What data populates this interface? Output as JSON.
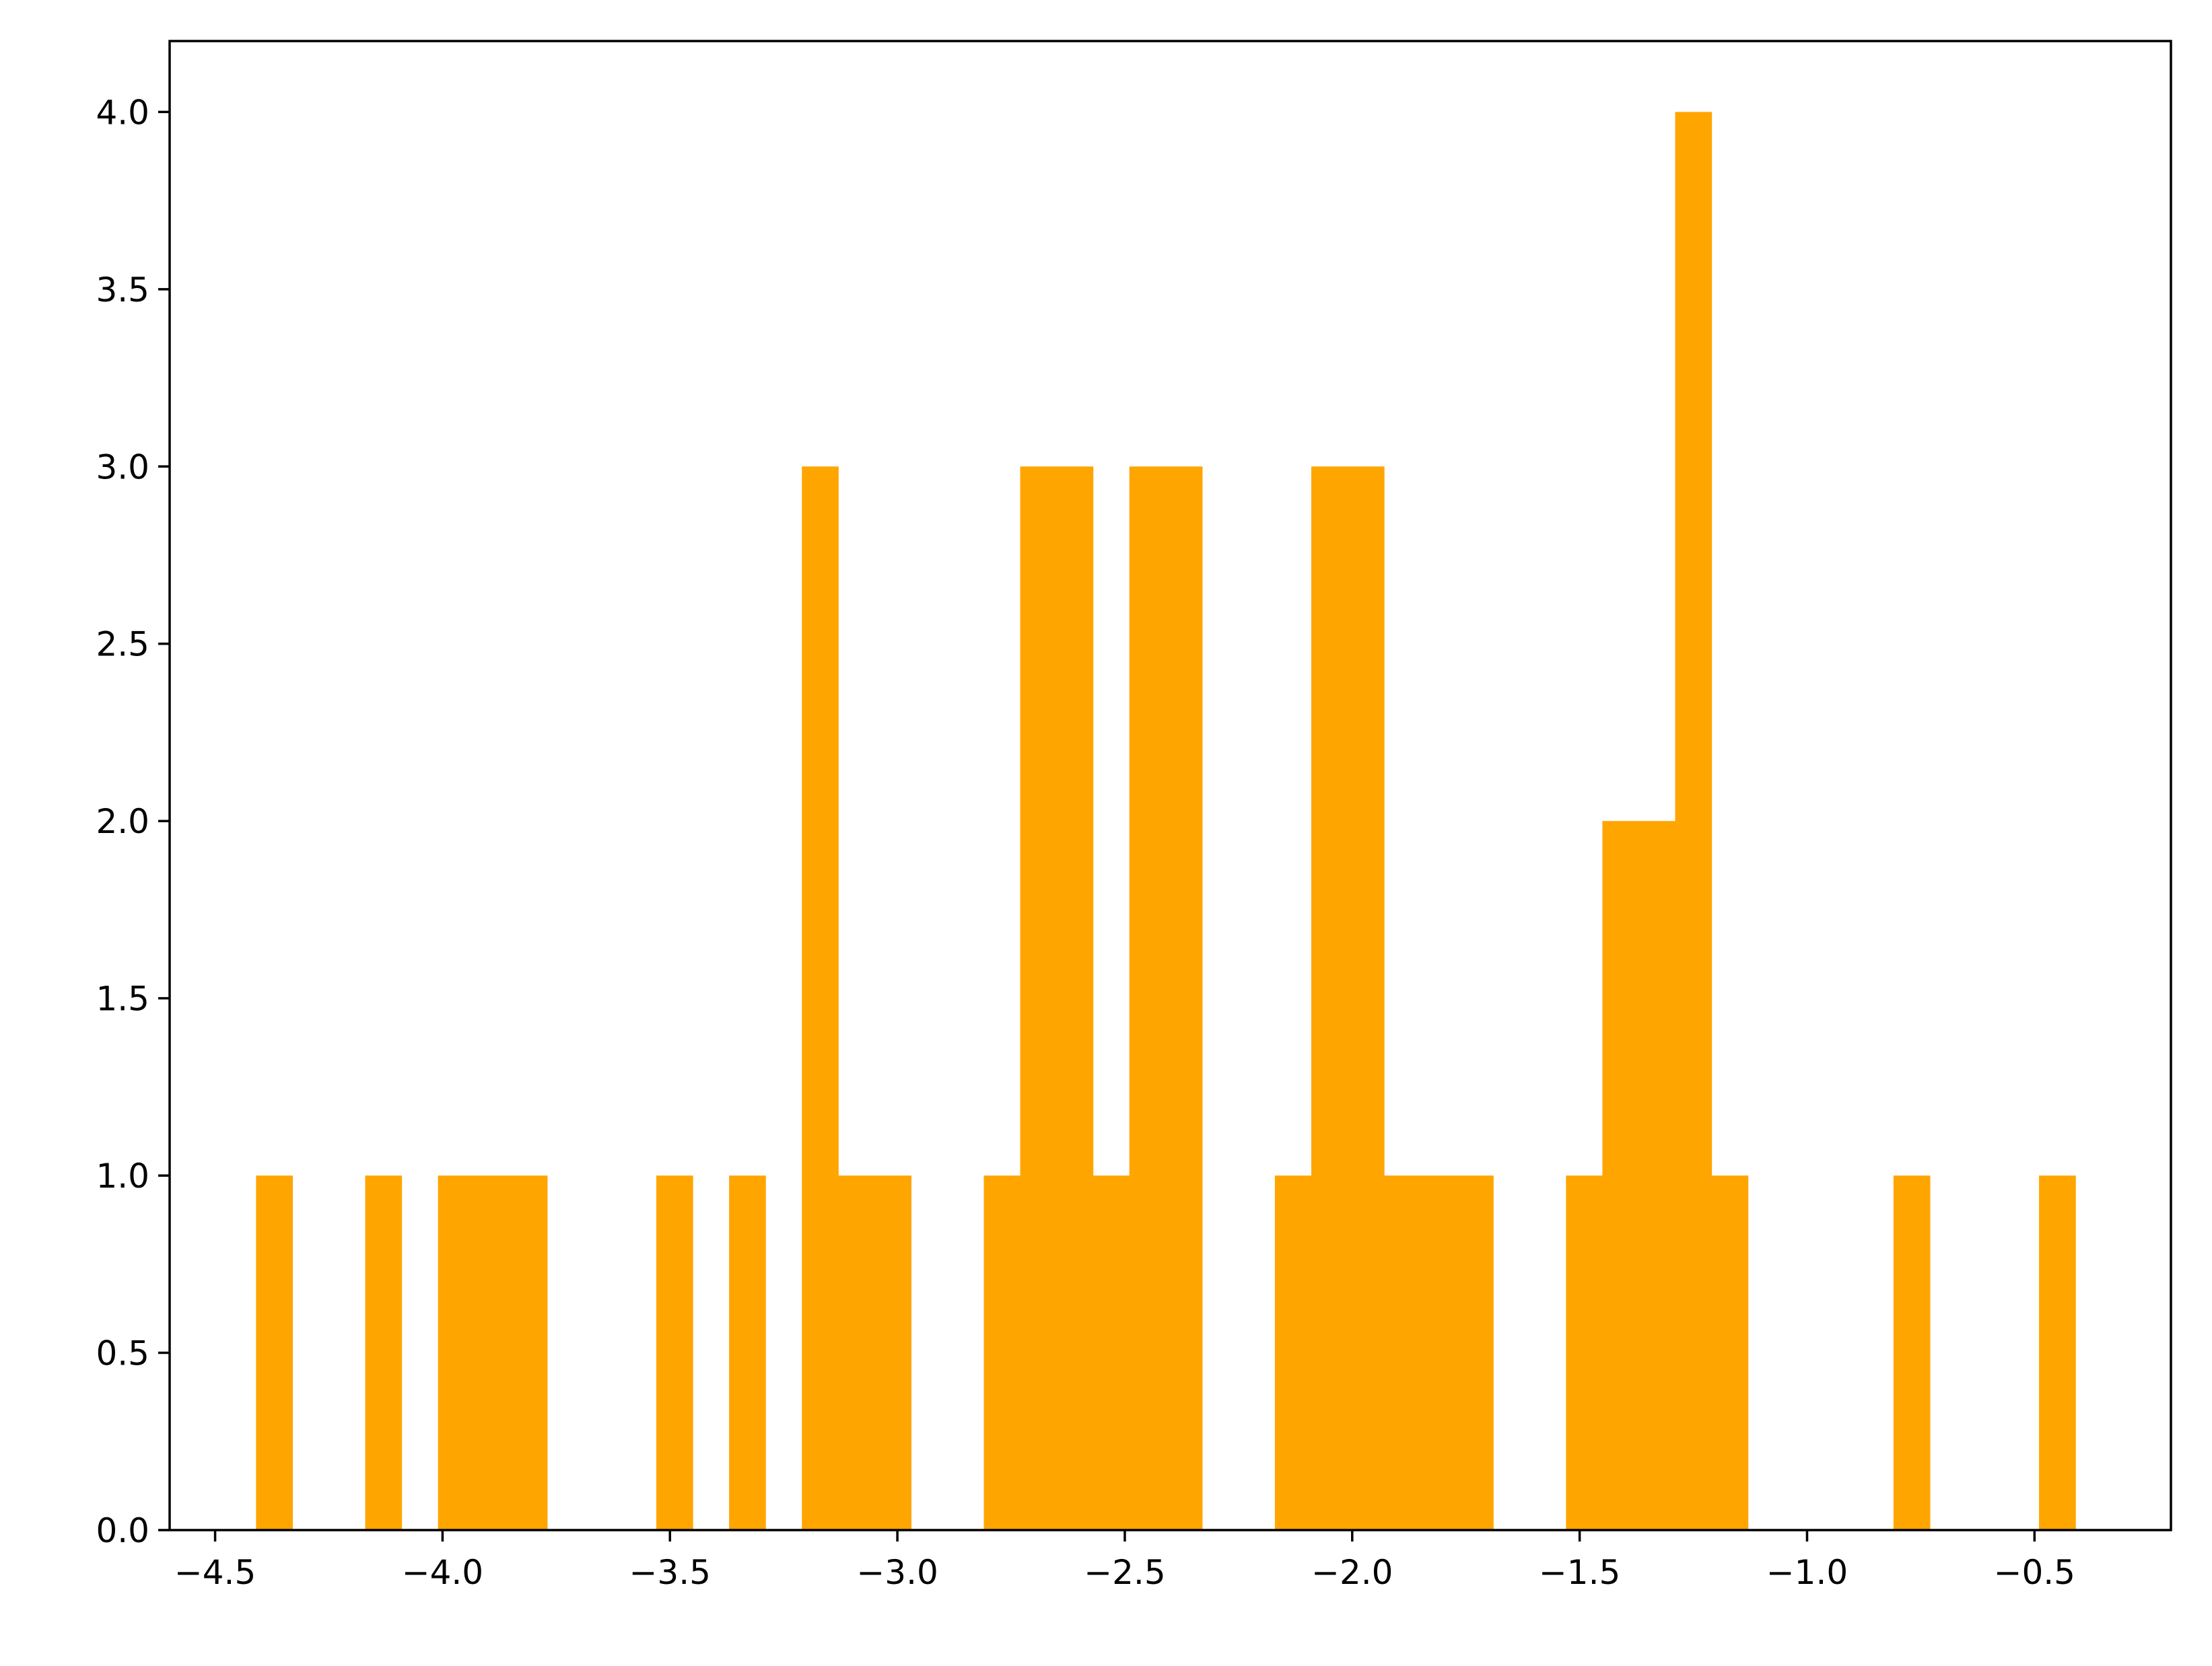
{
  "chart_data": {
    "type": "bar",
    "title": "",
    "xlabel": "",
    "ylabel": "",
    "bar_color": "#FFA500",
    "xlim": [
      -4.6,
      -0.2
    ],
    "ylim": [
      0,
      4.2
    ],
    "bin_width": 0.08,
    "grid": false,
    "bars": [
      {
        "x0": -4.41,
        "x1": -4.33,
        "value": 1
      },
      {
        "x0": -4.17,
        "x1": -4.09,
        "value": 1
      },
      {
        "x0": -4.01,
        "x1": -3.93,
        "value": 1
      },
      {
        "x0": -3.93,
        "x1": -3.85,
        "value": 1
      },
      {
        "x0": -3.85,
        "x1": -3.77,
        "value": 1
      },
      {
        "x0": -3.53,
        "x1": -3.45,
        "value": 1
      },
      {
        "x0": -3.37,
        "x1": -3.29,
        "value": 1
      },
      {
        "x0": -3.21,
        "x1": -3.13,
        "value": 3
      },
      {
        "x0": -3.13,
        "x1": -3.05,
        "value": 1
      },
      {
        "x0": -3.05,
        "x1": -2.97,
        "value": 1
      },
      {
        "x0": -2.81,
        "x1": -2.73,
        "value": 1
      },
      {
        "x0": -2.73,
        "x1": -2.65,
        "value": 3
      },
      {
        "x0": -2.65,
        "x1": -2.57,
        "value": 3
      },
      {
        "x0": -2.57,
        "x1": -2.49,
        "value": 1
      },
      {
        "x0": -2.49,
        "x1": -2.41,
        "value": 3
      },
      {
        "x0": -2.41,
        "x1": -2.33,
        "value": 3
      },
      {
        "x0": -2.17,
        "x1": -2.09,
        "value": 1
      },
      {
        "x0": -2.09,
        "x1": -2.01,
        "value": 3
      },
      {
        "x0": -2.01,
        "x1": -1.93,
        "value": 3
      },
      {
        "x0": -1.93,
        "x1": -1.85,
        "value": 1
      },
      {
        "x0": -1.85,
        "x1": -1.77,
        "value": 1
      },
      {
        "x0": -1.77,
        "x1": -1.69,
        "value": 1
      },
      {
        "x0": -1.53,
        "x1": -1.45,
        "value": 1
      },
      {
        "x0": -1.45,
        "x1": -1.37,
        "value": 2
      },
      {
        "x0": -1.37,
        "x1": -1.29,
        "value": 2
      },
      {
        "x0": -1.29,
        "x1": -1.21,
        "value": 4
      },
      {
        "x0": -1.21,
        "x1": -1.13,
        "value": 1
      },
      {
        "x0": -0.81,
        "x1": -0.73,
        "value": 1
      },
      {
        "x0": -0.49,
        "x1": -0.41,
        "value": 1
      }
    ],
    "x_ticks": [
      {
        "value": -4.5,
        "label": "−4.5"
      },
      {
        "value": -4.0,
        "label": "−4.0"
      },
      {
        "value": -3.5,
        "label": "−3.5"
      },
      {
        "value": -3.0,
        "label": "−3.0"
      },
      {
        "value": -2.5,
        "label": "−2.5"
      },
      {
        "value": -2.0,
        "label": "−2.0"
      },
      {
        "value": -1.5,
        "label": "−1.5"
      },
      {
        "value": -1.0,
        "label": "−1.0"
      },
      {
        "value": -0.5,
        "label": "−0.5"
      }
    ],
    "y_ticks": [
      {
        "value": 0.0,
        "label": "0.0"
      },
      {
        "value": 0.5,
        "label": "0.5"
      },
      {
        "value": 1.0,
        "label": "1.0"
      },
      {
        "value": 1.5,
        "label": "1.5"
      },
      {
        "value": 2.0,
        "label": "2.0"
      },
      {
        "value": 2.5,
        "label": "2.5"
      },
      {
        "value": 3.0,
        "label": "3.0"
      },
      {
        "value": 3.5,
        "label": "3.5"
      },
      {
        "value": 4.0,
        "label": "4.0"
      }
    ]
  }
}
